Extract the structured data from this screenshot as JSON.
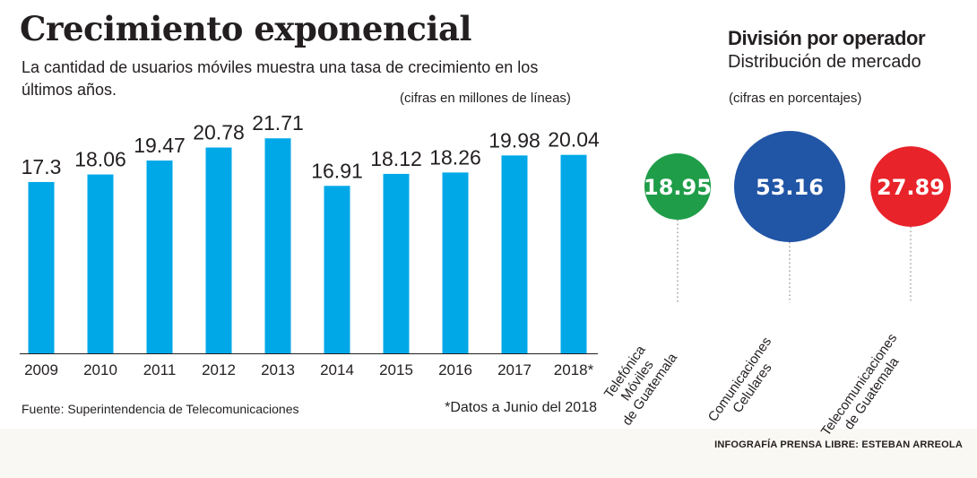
{
  "header": {
    "title": "Crecimiento exponencial",
    "subtitle": "La cantidad de usuarios móviles muestra una tasa de crecimiento en los últimos años.",
    "units": "(cifras en millones de líneas)"
  },
  "footer": {
    "source": "Fuente: Superintendencia de Telecomunicaciones",
    "note": "*Datos a Junio del 2018",
    "credit": "INFOGRAFÍA PRENSA LIBRE: ESTEBAN ARREOLA"
  },
  "operators": {
    "title": "División por operador",
    "subtitle": "Distribución de mercado",
    "units": "(cifras en porcentajes)"
  },
  "chart_data": [
    {
      "type": "bar",
      "categories": [
        "2009",
        "2010",
        "2011",
        "2012",
        "2013",
        "2014",
        "2015",
        "2016",
        "2017",
        "2018*"
      ],
      "values": [
        17.3,
        18.06,
        19.47,
        20.78,
        21.71,
        16.91,
        18.12,
        18.26,
        19.98,
        20.04
      ],
      "value_labels": [
        "17.3",
        "18.06",
        "19.47",
        "20.78",
        "21.71",
        "16.91",
        "18.12",
        "18.26",
        "19.98",
        "20.04"
      ],
      "ylim": [
        0,
        23
      ],
      "grid": false,
      "color": "#00a8e8"
    },
    {
      "type": "bubble",
      "categories": [
        "Telefónica Móviles de Guatemala",
        "Comunicaciones Celulares",
        "Telecomunicaciones de Guatemala"
      ],
      "label_lines": [
        [
          "Telefónica",
          "Móviles",
          "de Guatemala"
        ],
        [
          "Comunicaciones",
          "Celulares"
        ],
        [
          "Telecomunicaciones",
          "de Guatemala"
        ]
      ],
      "values": [
        18.95,
        53.16,
        27.89
      ],
      "value_labels": [
        "18.95",
        "53.16",
        "27.89"
      ],
      "colors": [
        "#1f9d48",
        "#2155a5",
        "#e8232a"
      ]
    }
  ]
}
